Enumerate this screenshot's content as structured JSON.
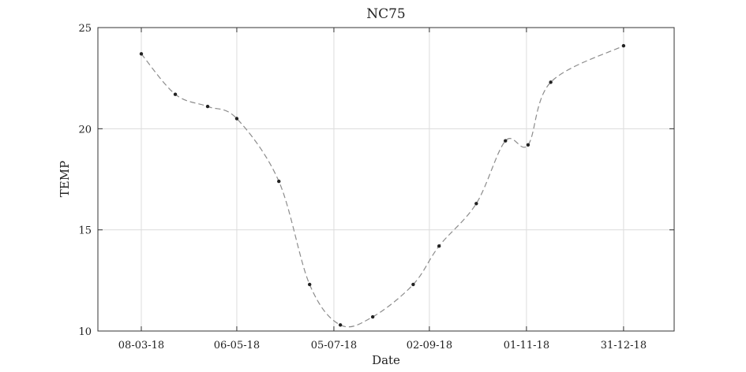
{
  "chart_data": {
    "type": "line",
    "title": "NC75",
    "xlabel": "Date",
    "ylabel": "TEMP",
    "ylim": [
      10,
      25
    ],
    "yticks": [
      10,
      15,
      20,
      25
    ],
    "xticks": [
      "08-03-18",
      "06-05-18",
      "05-07-18",
      "02-09-18",
      "01-11-18",
      "31-12-18"
    ],
    "grid": true,
    "series": [
      {
        "x": [
          "08-03-18",
          "29-03-18",
          "18-04-18",
          "06-05-18",
          "01-06-18",
          "20-06-18",
          "09-07-18",
          "29-07-18",
          "23-08-18",
          "08-09-18",
          "01-10-18",
          "19-10-18",
          "02-11-18",
          "16-11-18",
          "31-12-18"
        ],
        "y": [
          23.7,
          21.7,
          21.1,
          20.5,
          17.4,
          12.3,
          10.3,
          10.7,
          12.3,
          14.2,
          16.3,
          19.4,
          19.2,
          22.3,
          24.1
        ],
        "color": "#8c8c8c",
        "marker_color": "#222222"
      }
    ]
  }
}
